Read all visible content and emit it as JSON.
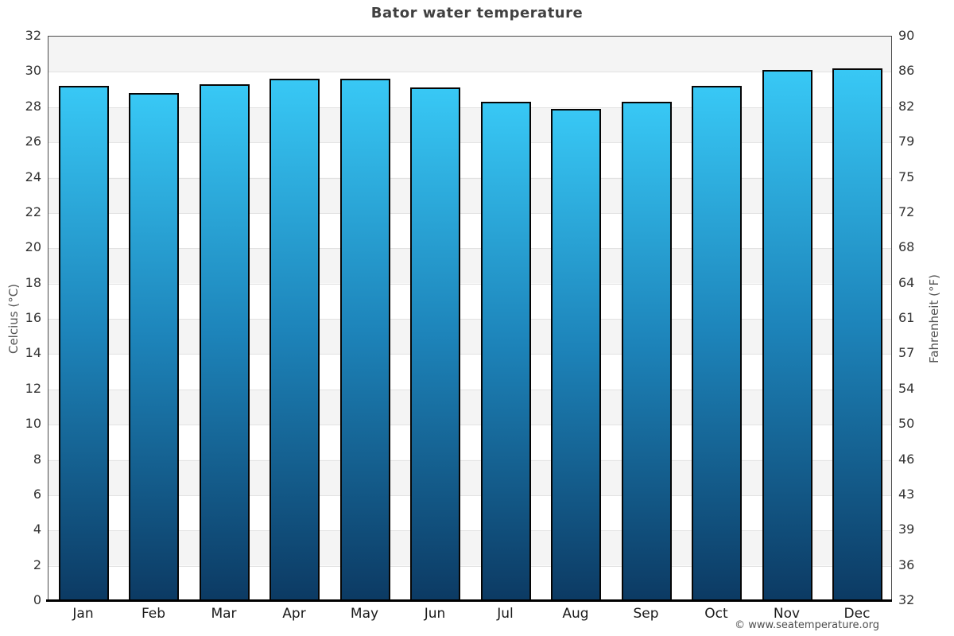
{
  "chart_data": {
    "type": "bar",
    "title": "Bator water temperature",
    "categories": [
      "Jan",
      "Feb",
      "Mar",
      "Apr",
      "May",
      "Jun",
      "Jul",
      "Aug",
      "Sep",
      "Oct",
      "Nov",
      "Dec"
    ],
    "values": [
      29.2,
      28.8,
      29.3,
      29.6,
      29.6,
      29.1,
      28.3,
      27.9,
      28.3,
      29.2,
      30.1,
      30.2
    ],
    "unit": "°C",
    "ylabel_left": "Celcius (°C)",
    "ylabel_right": "Fahrenheit (°F)",
    "ylim": [
      0,
      32
    ],
    "yticks_celsius": [
      32,
      30,
      28,
      26,
      24,
      22,
      20,
      18,
      16,
      14,
      12,
      10,
      8,
      6,
      4,
      2,
      0
    ],
    "yticks_fahrenheit": [
      90,
      86,
      82,
      79,
      75,
      72,
      68,
      64,
      61,
      57,
      54,
      50,
      46,
      43,
      39,
      36,
      32
    ],
    "grid": "horizontal-stripes-every-2C",
    "legend": "none"
  },
  "footer": {
    "copyright": "© www.seatemperature.org"
  },
  "colors": {
    "bar_gradient_top": "#38c8f5",
    "bar_gradient_mid": "#1d84ba",
    "bar_gradient_bottom": "#0c3a63",
    "stripe_gray": "#f4f4f4",
    "stripe_white": "#ffffff",
    "gridline": "#e2e2e2",
    "axis_frame": "#4a4a4a",
    "axis_bottom": "#000000",
    "title_text": "#404040",
    "tick_text": "#333333",
    "month_text": "#1a1a1a",
    "axis_title_text": "#555555",
    "footer_text": "#4d4d4d"
  }
}
